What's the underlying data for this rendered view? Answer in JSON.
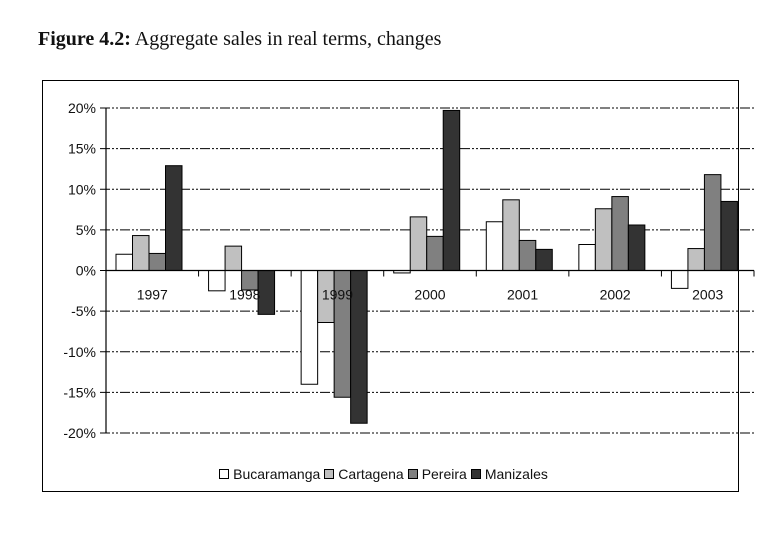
{
  "caption": {
    "label": "Figure 4.2:",
    "text": " Aggregate sales in real terms, changes"
  },
  "chart_data": {
    "type": "bar",
    "title": "Aggregate sales in real terms, changes",
    "xlabel": "",
    "ylabel": "",
    "categories": [
      "1997",
      "1998",
      "1999",
      "2000",
      "2001",
      "2002",
      "2003"
    ],
    "series": [
      {
        "name": "Bucaramanga",
        "color": "#ffffff",
        "values": [
          2.0,
          -2.5,
          -14.0,
          -0.3,
          6.0,
          3.2,
          -2.2
        ]
      },
      {
        "name": "Cartagena",
        "color": "#c0c0c0",
        "values": [
          4.3,
          3.0,
          -6.4,
          6.6,
          8.7,
          7.6,
          2.7
        ]
      },
      {
        "name": "Pereira",
        "color": "#808080",
        "values": [
          2.1,
          -2.4,
          -15.6,
          4.2,
          3.7,
          9.1,
          11.8
        ]
      },
      {
        "name": "Manizales",
        "color": "#333333",
        "values": [
          12.9,
          -5.4,
          -18.8,
          19.7,
          2.6,
          5.6,
          8.5
        ]
      }
    ],
    "ylim": [
      -20,
      20
    ],
    "yticks": [
      20,
      15,
      10,
      5,
      0,
      -5,
      -10,
      -15,
      -20
    ],
    "ytick_labels": [
      "20%",
      "15%",
      "10%",
      "5%",
      "0%",
      "-5%",
      "-10%",
      "-15%",
      "-20%"
    ],
    "grid": true,
    "legend_position": "bottom-center"
  }
}
